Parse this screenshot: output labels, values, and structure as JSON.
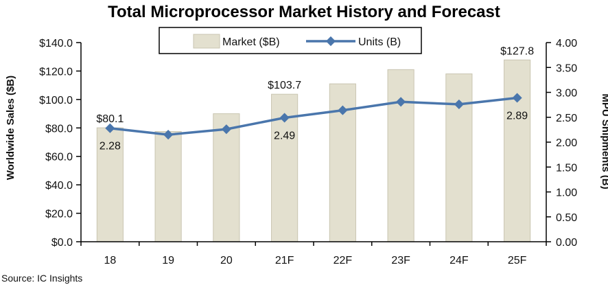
{
  "chart_data": {
    "type": "bar+line",
    "title": "Total Microprocessor Market History and Forecast",
    "categories": [
      "18",
      "19",
      "20",
      "21F",
      "22F",
      "23F",
      "24F",
      "25F"
    ],
    "series": [
      {
        "name": "Market ($B)",
        "type": "bar",
        "axis": "left",
        "values": [
          80.1,
          77.5,
          90.0,
          103.7,
          111.0,
          121.0,
          118.0,
          127.8
        ],
        "color": "#e3e0cf"
      },
      {
        "name": "Units (B)",
        "type": "line",
        "axis": "right",
        "values": [
          2.28,
          2.15,
          2.26,
          2.49,
          2.64,
          2.81,
          2.76,
          2.89
        ],
        "color": "#4a76ac"
      }
    ],
    "ylabel": "Worldwide Sales ($B)",
    "ylabel_right": "MPU Shipments (B)",
    "ylim": [
      0,
      140
    ],
    "ylim_right": [
      0,
      4.0
    ],
    "yticks": [
      "$0.0",
      "$20.0",
      "$40.0",
      "$60.0",
      "$80.0",
      "$100.0",
      "$120.0",
      "$140.0"
    ],
    "yticks_right": [
      "0.00",
      "0.50",
      "1.00",
      "1.50",
      "2.00",
      "2.50",
      "3.00",
      "3.50",
      "4.00"
    ],
    "data_labels": [
      {
        "series": "Market ($B)",
        "index": 0,
        "text": "$80.1"
      },
      {
        "series": "Market ($B)",
        "index": 3,
        "text": "$103.7"
      },
      {
        "series": "Market ($B)",
        "index": 7,
        "text": "$127.8"
      },
      {
        "series": "Units (B)",
        "index": 0,
        "text": "2.28"
      },
      {
        "series": "Units (B)",
        "index": 3,
        "text": "2.49"
      },
      {
        "series": "Units (B)",
        "index": 7,
        "text": "2.89"
      }
    ],
    "legend": {
      "placement": "top-center",
      "items": [
        "Market ($B)",
        "Units (B)"
      ]
    },
    "grid": false
  },
  "source": "Source:  IC Insights"
}
